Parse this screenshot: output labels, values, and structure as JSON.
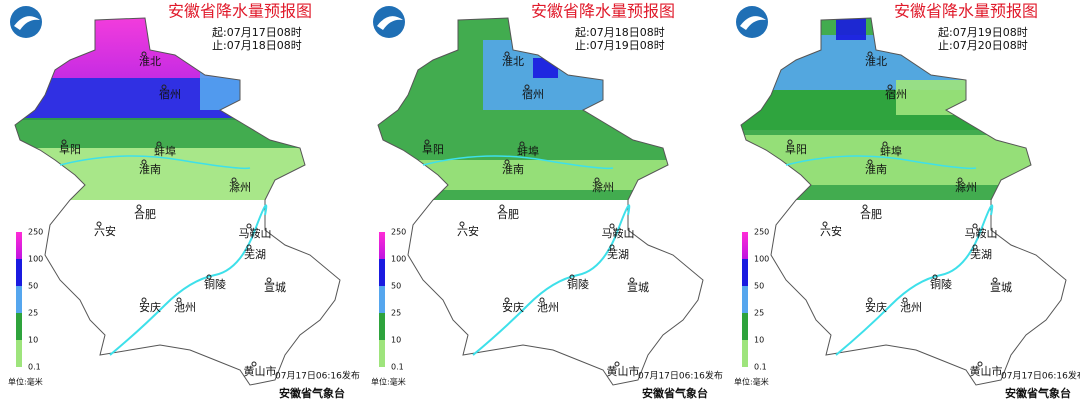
{
  "panels": [
    {
      "title": "安徽省降水量预报图",
      "start": "起:07月17日08时",
      "end": "止:07月18日08时",
      "issued": "07月17日06:16发布",
      "agency": "安徽省气象台"
    },
    {
      "title": "安徽省降水量预报图",
      "start": "起:07月18日08时",
      "end": "止:07月19日08时",
      "issued": "07月17日06:16发布",
      "agency": "安徽省气象台"
    },
    {
      "title": "安徽省降水量预报图",
      "start": "起:07月19日08时",
      "end": "止:07月20日08时",
      "issued": "07月17日06:16发布",
      "agency": "安徽省气象台"
    }
  ],
  "cities": [
    "淮北",
    "宿州",
    "阜阳",
    "蚌埠",
    "淮南",
    "滁州",
    "合肥",
    "六安",
    "马鞍山",
    "芜湖",
    "铜陵",
    "宣城",
    "安庆",
    "池州",
    "黄山市"
  ],
  "legend": {
    "labels": [
      "250",
      "100",
      "50",
      "25",
      "10",
      "0.1"
    ],
    "unit": "单位:毫米"
  }
}
